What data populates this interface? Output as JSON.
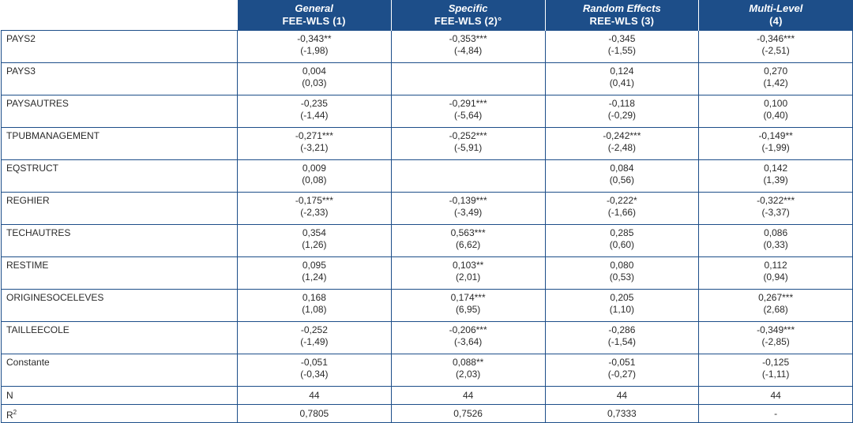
{
  "headers": [
    {
      "top": "General",
      "bottom": "FEE-WLS (1)"
    },
    {
      "top": "Specific",
      "bottom": "FEE-WLS (2)°"
    },
    {
      "top": "Random Effects",
      "bottom": "REE-WLS (3)"
    },
    {
      "top": "Multi-Level",
      "bottom": "(4)"
    }
  ],
  "rows": [
    {
      "name": "PAYS2",
      "cells": [
        {
          "coef": "-0,343**",
          "t": "(-1,98)"
        },
        {
          "coef": "-0,353***",
          "t": "(-4,84)"
        },
        {
          "coef": "-0,345",
          "t": "(-1,55)"
        },
        {
          "coef": "-0,346***",
          "t": "(-2,51)"
        }
      ]
    },
    {
      "name": "PAYS3",
      "cells": [
        {
          "coef": "0,004",
          "t": "(0,03)"
        },
        {
          "coef": "",
          "t": ""
        },
        {
          "coef": "0,124",
          "t": "(0,41)"
        },
        {
          "coef": "0,270",
          "t": "(1,42)"
        }
      ]
    },
    {
      "name": "PAYSAUTRES",
      "cells": [
        {
          "coef": "-0,235",
          "t": "(-1,44)"
        },
        {
          "coef": "-0,291***",
          "t": "(-5,64)"
        },
        {
          "coef": "-0,118",
          "t": "(-0,29)"
        },
        {
          "coef": "0,100",
          "t": "(0,40)"
        }
      ]
    },
    {
      "name": "TPUBMANAGEMENT",
      "cells": [
        {
          "coef": "-0,271***",
          "t": "(-3,21)"
        },
        {
          "coef": "-0,252***",
          "t": "(-5,91)"
        },
        {
          "coef": "-0,242***",
          "t": "(-2,48)"
        },
        {
          "coef": "-0,149**",
          "t": "(-1,99)"
        }
      ]
    },
    {
      "name": "EQSTRUCT",
      "cells": [
        {
          "coef": "0,009",
          "t": "(0,08)"
        },
        {
          "coef": "",
          "t": ""
        },
        {
          "coef": "0,084",
          "t": "(0,56)"
        },
        {
          "coef": "0,142",
          "t": "(1,39)"
        }
      ]
    },
    {
      "name": "REGHIER",
      "cells": [
        {
          "coef": "-0,175***",
          "t": "(-2,33)"
        },
        {
          "coef": "-0,139***",
          "t": "(-3,49)"
        },
        {
          "coef": "-0,222*",
          "t": "(-1,66)"
        },
        {
          "coef": "-0,322***",
          "t": "(-3,37)"
        }
      ]
    },
    {
      "name": "TECHAUTRES",
      "cells": [
        {
          "coef": "0,354",
          "t": "(1,26)"
        },
        {
          "coef": "0,563***",
          "t": "(6,62)"
        },
        {
          "coef": "0,285",
          "t": "(0,60)"
        },
        {
          "coef": "0,086",
          "t": "(0,33)"
        }
      ]
    },
    {
      "name": "RESTIME",
      "cells": [
        {
          "coef": "0,095",
          "t": "(1,24)"
        },
        {
          "coef": "0,103**",
          "t": "(2,01)"
        },
        {
          "coef": "0,080",
          "t": "(0,53)"
        },
        {
          "coef": "0,112",
          "t": "(0,94)"
        }
      ]
    },
    {
      "name": "ORIGINESOCELEVES",
      "cells": [
        {
          "coef": "0,168",
          "t": "(1,08)"
        },
        {
          "coef": "0,174***",
          "t": "(6,95)"
        },
        {
          "coef": "0,205",
          "t": "(1,10)"
        },
        {
          "coef": "0,267***",
          "t": "(2,68)"
        }
      ]
    },
    {
      "name": "TAILLEECOLE",
      "cells": [
        {
          "coef": "-0,252",
          "t": "(-1,49)"
        },
        {
          "coef": "-0,206***",
          "t": "(-3,64)"
        },
        {
          "coef": "-0,286",
          "t": "(-1,54)"
        },
        {
          "coef": "-0,349***",
          "t": "(-2,85)"
        }
      ]
    },
    {
      "name": "Constante",
      "cells": [
        {
          "coef": "-0,051",
          "t": "(-0,34)"
        },
        {
          "coef": "0,088**",
          "t": "(2,03)"
        },
        {
          "coef": "-0,051",
          "t": "(-0,27)"
        },
        {
          "coef": "-0,125",
          "t": "(-1,11)"
        }
      ]
    }
  ],
  "summary": [
    {
      "name": "N",
      "sup": "",
      "values": [
        "44",
        "44",
        "44",
        "44"
      ]
    },
    {
      "name": "R",
      "sup": "2",
      "values": [
        "0,7805",
        "0,7526",
        "0,7333",
        "-"
      ]
    }
  ],
  "colors": {
    "header_bg": "#1d4e89",
    "border": "#1d4e89",
    "header_text": "#ffffff"
  }
}
